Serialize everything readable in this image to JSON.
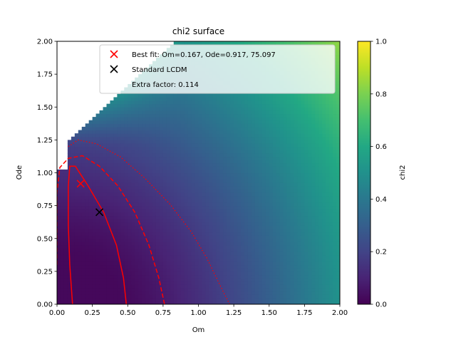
{
  "chart_data": {
    "type": "heatmap",
    "title": "chi2 surface",
    "xlabel": "Om",
    "ylabel": "Ode",
    "xlim": [
      0.0,
      2.0
    ],
    "ylim": [
      0.0,
      2.0
    ],
    "xticks": [
      "0.00",
      "0.25",
      "0.50",
      "0.75",
      "1.00",
      "1.25",
      "1.50",
      "1.75",
      "2.00"
    ],
    "yticks": [
      "0.00",
      "0.25",
      "0.50",
      "0.75",
      "1.00",
      "1.25",
      "1.50",
      "1.75",
      "2.00"
    ],
    "colorbar": {
      "label": "chi2",
      "range": [
        0.0,
        1.0
      ],
      "ticks": [
        "0.0",
        "0.2",
        "0.4",
        "0.6",
        "0.8",
        "1.0"
      ],
      "colormap": "viridis"
    },
    "points": [
      {
        "name": "Best fit: Om=0.167, Ode=0.917, 75.097",
        "x": 0.167,
        "y": 0.917,
        "marker": "x",
        "color": "#ff0000"
      },
      {
        "name": "Standard LCDM",
        "x": 0.3,
        "y": 0.7,
        "marker": "x",
        "color": "#000000"
      }
    ],
    "legend": {
      "location": "upper right",
      "extra_text": "Extra factor: 0.114"
    },
    "contours": [
      {
        "style": "solid",
        "color": "#ff0000",
        "points": [
          [
            0.11,
            0.0
          ],
          [
            0.09,
            0.3
          ],
          [
            0.08,
            0.6
          ],
          [
            0.08,
            0.9
          ],
          [
            0.09,
            1.05
          ],
          [
            0.13,
            1.05
          ],
          [
            0.22,
            0.9
          ],
          [
            0.33,
            0.7
          ],
          [
            0.42,
            0.45
          ],
          [
            0.47,
            0.2
          ],
          [
            0.49,
            0.0
          ]
        ]
      },
      {
        "style": "dashed",
        "color": "#ff0000",
        "points": [
          [
            0.0,
            0.3
          ],
          [
            0.0,
            0.85
          ],
          [
            0.02,
            1.04
          ],
          [
            0.08,
            1.11
          ],
          [
            0.18,
            1.13
          ],
          [
            0.3,
            1.05
          ],
          [
            0.43,
            0.9
          ],
          [
            0.55,
            0.7
          ],
          [
            0.65,
            0.45
          ],
          [
            0.72,
            0.2
          ],
          [
            0.76,
            0.0
          ]
        ]
      },
      {
        "style": "dotted",
        "color": "#ff0000",
        "points": [
          [
            0.08,
            1.2
          ],
          [
            0.15,
            1.25
          ],
          [
            0.28,
            1.22
          ],
          [
            0.45,
            1.12
          ],
          [
            0.62,
            0.96
          ],
          [
            0.8,
            0.76
          ],
          [
            0.95,
            0.55
          ],
          [
            1.06,
            0.35
          ],
          [
            1.15,
            0.15
          ],
          [
            1.22,
            0.0
          ]
        ]
      }
    ],
    "excluded_region": "upper-left blank area (no data)"
  }
}
